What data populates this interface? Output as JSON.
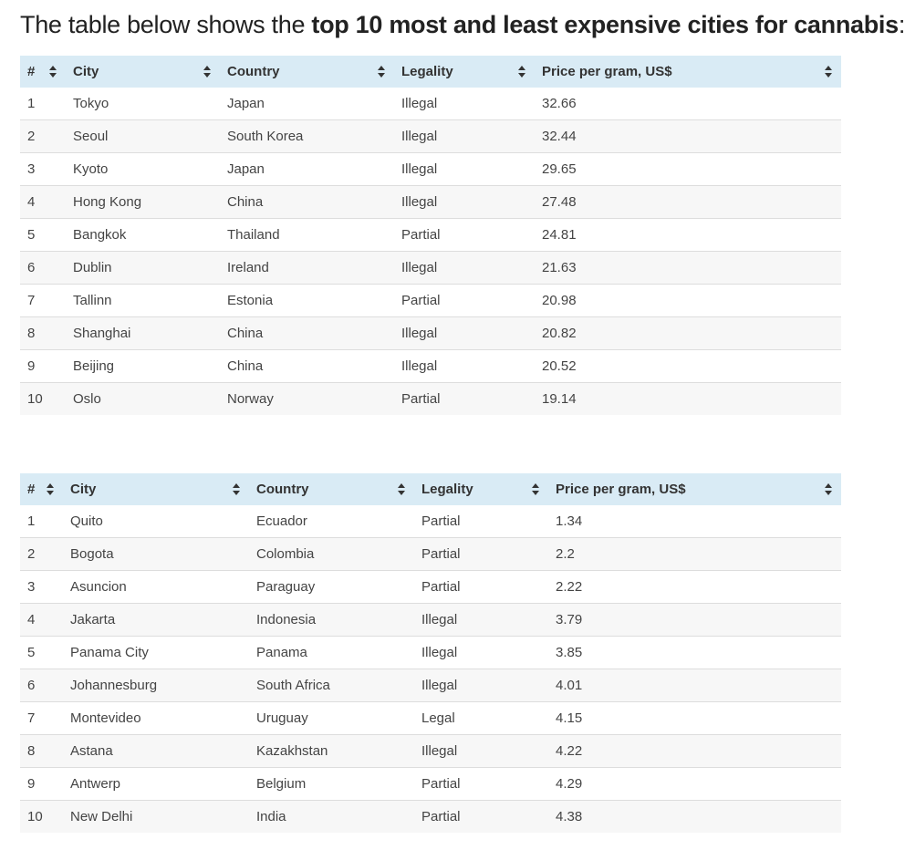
{
  "intro": {
    "prefix": "The table below shows the ",
    "bold": "top 10 most and least expensive cities for cannabis",
    "suffix": ":"
  },
  "columns": [
    "#",
    "City",
    "Country",
    "Legality",
    "Price per gram, US$"
  ],
  "colors": {
    "header_background": "#d9ebf5",
    "stripe_background": "#f7f7f7",
    "row_border": "#dddddd"
  },
  "most_expensive": [
    [
      "1",
      "Tokyo",
      "Japan",
      "Illegal",
      "32.66"
    ],
    [
      "2",
      "Seoul",
      "South Korea",
      "Illegal",
      "32.44"
    ],
    [
      "3",
      "Kyoto",
      "Japan",
      "Illegal",
      "29.65"
    ],
    [
      "4",
      "Hong Kong",
      "China",
      "Illegal",
      "27.48"
    ],
    [
      "5",
      "Bangkok",
      "Thailand",
      "Partial",
      "24.81"
    ],
    [
      "6",
      "Dublin",
      "Ireland",
      "Illegal",
      "21.63"
    ],
    [
      "7",
      "Tallinn",
      "Estonia",
      "Partial",
      "20.98"
    ],
    [
      "8",
      "Shanghai",
      "China",
      "Illegal",
      "20.82"
    ],
    [
      "9",
      "Beijing",
      "China",
      "Illegal",
      "20.52"
    ],
    [
      "10",
      "Oslo",
      "Norway",
      "Partial",
      "19.14"
    ]
  ],
  "least_expensive": [
    [
      "1",
      "Quito",
      "Ecuador",
      "Partial",
      "1.34"
    ],
    [
      "2",
      "Bogota",
      "Colombia",
      "Partial",
      "2.2"
    ],
    [
      "3",
      "Asuncion",
      "Paraguay",
      "Partial",
      "2.22"
    ],
    [
      "4",
      "Jakarta",
      "Indonesia",
      "Illegal",
      "3.79"
    ],
    [
      "5",
      "Panama City",
      "Panama",
      "Illegal",
      "3.85"
    ],
    [
      "6",
      "Johannesburg",
      "South Africa",
      "Illegal",
      "4.01"
    ],
    [
      "7",
      "Montevideo",
      "Uruguay",
      "Legal",
      "4.15"
    ],
    [
      "8",
      "Astana",
      "Kazakhstan",
      "Illegal",
      "4.22"
    ],
    [
      "9",
      "Antwerp",
      "Belgium",
      "Partial",
      "4.29"
    ],
    [
      "10",
      "New Delhi",
      "India",
      "Partial",
      "4.38"
    ]
  ]
}
